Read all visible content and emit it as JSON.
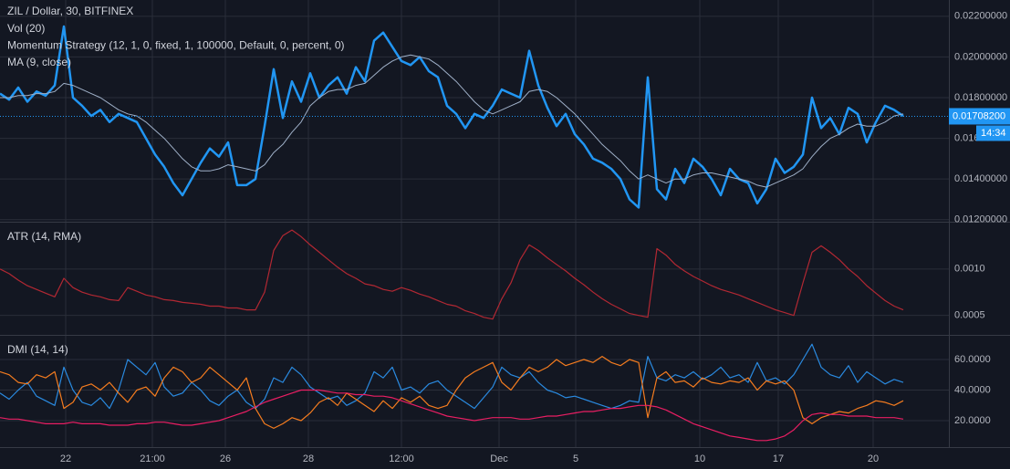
{
  "chart_data": [
    {
      "type": "line",
      "title": "ZIL / Dollar, 30, BITFINEX",
      "indicators": [
        "Vol (20)",
        "Momentum Strategy (12, 1, 0, fixed, 1, 100000, Default, 0, percent, 0)",
        "MA (9, close)"
      ],
      "x": [
        0,
        1,
        2,
        3,
        4,
        5,
        6,
        7,
        8,
        9,
        10,
        11,
        12,
        13,
        14,
        15,
        16,
        17,
        18,
        19,
        20,
        21,
        22,
        23,
        24,
        25,
        26,
        27,
        28,
        29,
        30,
        31,
        32,
        33,
        34,
        35,
        36,
        37,
        38,
        39,
        40,
        41,
        42,
        43,
        44,
        45,
        46,
        47,
        48,
        49,
        50,
        51,
        52,
        53,
        54,
        55,
        56,
        57,
        58,
        59,
        60,
        61,
        62,
        63,
        64,
        65,
        66,
        67,
        68,
        69,
        70,
        71,
        72,
        73,
        74,
        75,
        76,
        77,
        78,
        79,
        80,
        81,
        82,
        83,
        84,
        85,
        86,
        87,
        88,
        89,
        90,
        91,
        92,
        93,
        94,
        95,
        96,
        97,
        98,
        99
      ],
      "xlim": [
        0,
        104
      ],
      "series": [
        {
          "color": "#2196f3",
          "values": [
            0.0182,
            0.0179,
            0.0185,
            0.0178,
            0.0183,
            0.0181,
            0.0186,
            0.0215,
            0.018,
            0.0176,
            0.0171,
            0.0174,
            0.0168,
            0.0172,
            0.017,
            0.0168,
            0.016,
            0.0152,
            0.0146,
            0.0138,
            0.0132,
            0.014,
            0.0148,
            0.0155,
            0.0151,
            0.0158,
            0.0137,
            0.0137,
            0.014,
            0.0166,
            0.0194,
            0.017,
            0.0188,
            0.0178,
            0.0192,
            0.018,
            0.0186,
            0.019,
            0.0182,
            0.0195,
            0.0188,
            0.0208,
            0.0212,
            0.0205,
            0.0198,
            0.0196,
            0.02,
            0.0193,
            0.019,
            0.0176,
            0.0172,
            0.0165,
            0.0172,
            0.017,
            0.0176,
            0.0184,
            0.0182,
            0.018,
            0.0203,
            0.0186,
            0.0175,
            0.0166,
            0.0172,
            0.0162,
            0.0157,
            0.015,
            0.0148,
            0.0145,
            0.014,
            0.013,
            0.0126,
            0.019,
            0.0135,
            0.013,
            0.0145,
            0.0138,
            0.015,
            0.0146,
            0.014,
            0.0132,
            0.0145,
            0.014,
            0.0138,
            0.0128,
            0.0135,
            0.015,
            0.0143,
            0.0146,
            0.0152,
            0.018,
            0.0165,
            0.017,
            0.0162,
            0.0175,
            0.0172,
            0.0158,
            0.0168,
            0.0176,
            0.0174,
            0.0171
          ]
        },
        {
          "color": "#9fb0c8",
          "values": [
            0.018,
            0.018,
            0.0181,
            0.0181,
            0.0182,
            0.0182,
            0.0183,
            0.0187,
            0.0186,
            0.0184,
            0.0182,
            0.018,
            0.0177,
            0.0174,
            0.0172,
            0.0171,
            0.0168,
            0.0164,
            0.016,
            0.0155,
            0.015,
            0.0146,
            0.0144,
            0.0144,
            0.0145,
            0.0147,
            0.0146,
            0.0145,
            0.0144,
            0.0147,
            0.0153,
            0.0157,
            0.0163,
            0.0168,
            0.0176,
            0.018,
            0.0183,
            0.0184,
            0.0184,
            0.0186,
            0.0187,
            0.0191,
            0.0195,
            0.0198,
            0.02,
            0.0201,
            0.02,
            0.0199,
            0.0196,
            0.0192,
            0.0188,
            0.0183,
            0.0178,
            0.0174,
            0.0172,
            0.0174,
            0.0176,
            0.0178,
            0.0183,
            0.0184,
            0.0183,
            0.018,
            0.0176,
            0.0172,
            0.0167,
            0.0162,
            0.0157,
            0.0153,
            0.0149,
            0.0144,
            0.014,
            0.0142,
            0.014,
            0.0138,
            0.014,
            0.014,
            0.0142,
            0.0143,
            0.0143,
            0.0142,
            0.0141,
            0.014,
            0.0139,
            0.0137,
            0.0136,
            0.0138,
            0.014,
            0.0142,
            0.0145,
            0.0151,
            0.0156,
            0.016,
            0.0162,
            0.0165,
            0.0167,
            0.0166,
            0.0166,
            0.0168,
            0.0171,
            0.0172
          ]
        }
      ],
      "ylim": [
        0.0119,
        0.0228
      ],
      "yticks": [
        {
          "value": 0.012,
          "label": "0.01200000"
        },
        {
          "value": 0.014,
          "label": "0.01400000"
        },
        {
          "value": 0.016,
          "label": "0.01600000"
        },
        {
          "value": 0.018,
          "label": "0.01800000"
        },
        {
          "value": 0.02,
          "label": "0.02000000"
        },
        {
          "value": 0.022,
          "label": "0.02200000"
        }
      ],
      "last_value": {
        "value": 0.017082,
        "label": "0.01708200"
      },
      "countdown": "14:34",
      "grid": true
    },
    {
      "type": "line",
      "title": "ATR (14, RMA)",
      "series": [
        {
          "color": "#b22833",
          "values": [
            0.001,
            0.00095,
            0.00088,
            0.00082,
            0.00078,
            0.00074,
            0.0007,
            0.0009,
            0.0008,
            0.00075,
            0.00072,
            0.0007,
            0.00067,
            0.00066,
            0.0008,
            0.00076,
            0.00072,
            0.0007,
            0.00067,
            0.00066,
            0.00064,
            0.00063,
            0.00062,
            0.0006,
            0.0006,
            0.00058,
            0.00058,
            0.00056,
            0.00056,
            0.00075,
            0.0012,
            0.00136,
            0.00142,
            0.00135,
            0.00126,
            0.00118,
            0.0011,
            0.00102,
            0.00095,
            0.0009,
            0.00084,
            0.00082,
            0.00078,
            0.00076,
            0.0008,
            0.00077,
            0.00073,
            0.0007,
            0.00066,
            0.00062,
            0.0006,
            0.00055,
            0.00052,
            0.00048,
            0.00046,
            0.00068,
            0.00085,
            0.0011,
            0.00126,
            0.0012,
            0.00112,
            0.00105,
            0.00098,
            0.0009,
            0.00083,
            0.00075,
            0.00068,
            0.00062,
            0.00057,
            0.00052,
            0.0005,
            0.00048,
            0.00122,
            0.00115,
            0.00105,
            0.00098,
            0.00092,
            0.00087,
            0.00082,
            0.00078,
            0.00075,
            0.00072,
            0.00068,
            0.00064,
            0.0006,
            0.00056,
            0.00053,
            0.0005,
            0.00085,
            0.00118,
            0.00125,
            0.00118,
            0.0011,
            0.001,
            0.00092,
            0.00082,
            0.00074,
            0.00066,
            0.0006,
            0.00056
          ]
        }
      ],
      "ylim": [
        0.00029,
        0.00151
      ],
      "yticks": [
        {
          "value": 0.0005,
          "label": "0.0005"
        },
        {
          "value": 0.001,
          "label": "0.0010"
        }
      ],
      "grid": true
    },
    {
      "type": "line",
      "title": "DMI (14, 14)",
      "series": [
        {
          "color": "#2a8ae0",
          "values": [
            38,
            34,
            40,
            45,
            36,
            33,
            30,
            55,
            40,
            32,
            30,
            35,
            28,
            40,
            60,
            55,
            50,
            58,
            42,
            36,
            38,
            45,
            40,
            33,
            30,
            36,
            40,
            32,
            28,
            34,
            48,
            45,
            55,
            50,
            42,
            38,
            34,
            36,
            30,
            33,
            38,
            52,
            48,
            55,
            40,
            42,
            38,
            44,
            46,
            40,
            36,
            32,
            28,
            35,
            42,
            55,
            50,
            48,
            52,
            45,
            40,
            38,
            35,
            36,
            34,
            32,
            30,
            28,
            30,
            33,
            32,
            62,
            48,
            46,
            50,
            48,
            52,
            47,
            50,
            55,
            48,
            50,
            45,
            58,
            46,
            48,
            44,
            50,
            60,
            70,
            55,
            50,
            48,
            56,
            45,
            52,
            48,
            44,
            47,
            45
          ]
        },
        {
          "color": "#f57c1f",
          "values": [
            52,
            50,
            45,
            44,
            50,
            48,
            52,
            28,
            32,
            42,
            44,
            40,
            45,
            38,
            32,
            40,
            42,
            36,
            48,
            55,
            52,
            45,
            48,
            55,
            50,
            45,
            40,
            48,
            28,
            18,
            15,
            18,
            22,
            20,
            25,
            32,
            35,
            30,
            38,
            34,
            30,
            26,
            33,
            28,
            35,
            32,
            36,
            30,
            28,
            30,
            40,
            48,
            52,
            55,
            58,
            45,
            40,
            48,
            55,
            52,
            55,
            60,
            56,
            58,
            60,
            58,
            62,
            58,
            56,
            60,
            58,
            22,
            48,
            52,
            45,
            46,
            42,
            48,
            45,
            44,
            46,
            45,
            48,
            40,
            46,
            44,
            46,
            40,
            22,
            18,
            22,
            24,
            26,
            25,
            28,
            30,
            33,
            32,
            30,
            33
          ]
        },
        {
          "color": "#e91e63",
          "values": [
            22,
            21,
            21,
            20,
            19,
            18,
            18,
            18,
            19,
            18,
            18,
            18,
            17,
            17,
            17,
            18,
            18,
            19,
            19,
            18,
            17,
            17,
            18,
            19,
            20,
            22,
            24,
            26,
            29,
            32,
            34,
            36,
            38,
            40,
            40,
            40,
            39,
            38,
            38,
            37,
            37,
            36,
            36,
            35,
            33,
            31,
            29,
            27,
            25,
            23,
            22,
            21,
            20,
            21,
            22,
            22,
            22,
            21,
            21,
            22,
            23,
            23,
            24,
            25,
            26,
            26,
            27,
            28,
            28,
            29,
            30,
            30,
            29,
            27,
            24,
            21,
            18,
            16,
            14,
            12,
            10,
            9,
            8,
            7,
            7,
            8,
            10,
            14,
            20,
            24,
            25,
            24,
            24,
            23,
            23,
            23,
            22,
            22,
            22,
            21
          ]
        }
      ],
      "ylim": [
        2.7,
        76.1
      ],
      "yticks": [
        {
          "value": 20,
          "label": "20.0000"
        },
        {
          "value": 40,
          "label": "40.0000"
        },
        {
          "value": 60,
          "label": "60.0000"
        }
      ],
      "xticks": [
        {
          "value": 7.2,
          "label": "22"
        },
        {
          "value": 16.7,
          "label": "21:00"
        },
        {
          "value": 24.7,
          "label": "26"
        },
        {
          "value": 33.8,
          "label": "28"
        },
        {
          "value": 44.0,
          "label": "12:00"
        },
        {
          "value": 54.7,
          "label": "Dec"
        },
        {
          "value": 63.1,
          "label": "5"
        },
        {
          "value": 76.7,
          "label": "10"
        },
        {
          "value": 85.3,
          "label": "17"
        },
        {
          "value": 95.7,
          "label": "20"
        }
      ],
      "grid": true
    }
  ]
}
